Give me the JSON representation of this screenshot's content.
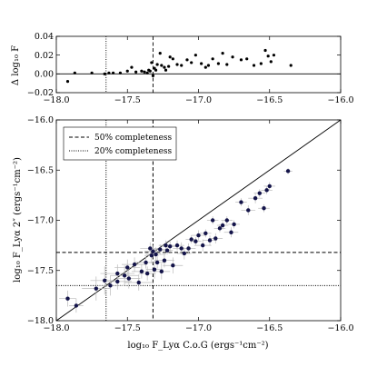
{
  "chart_data": [
    {
      "type": "scatter",
      "panel": "top",
      "ylabel": "Δ log₁₀ F",
      "xlim": [
        -18.0,
        -16.0
      ],
      "ylim": [
        -0.02,
        0.04
      ],
      "xticks": [
        "−18.0",
        "−17.5",
        "−17.0",
        "−16.5",
        "−16.0"
      ],
      "yticks": [
        "−0.02",
        "0.00",
        "0.02",
        "0.04"
      ],
      "xtick_values": [
        -18.0,
        -17.5,
        -17.0,
        -16.5,
        -16.0
      ],
      "ytick_values": [
        -0.02,
        0.0,
        0.02,
        0.04
      ],
      "hlines": [
        0.0
      ],
      "vlines_dashed": [
        -17.32
      ],
      "vlines_dotted": [
        -17.65
      ],
      "points": [
        [
          -17.92,
          -0.008
        ],
        [
          -17.87,
          0.001
        ],
        [
          -17.75,
          0.001
        ],
        [
          -17.66,
          0.0
        ],
        [
          -17.63,
          0.001
        ],
        [
          -17.6,
          0.001
        ],
        [
          -17.55,
          0.001
        ],
        [
          -17.5,
          0.003
        ],
        [
          -17.47,
          0.007
        ],
        [
          -17.44,
          0.002
        ],
        [
          -17.4,
          0.003
        ],
        [
          -17.38,
          0.002
        ],
        [
          -17.36,
          0.001
        ],
        [
          -17.35,
          0.004
        ],
        [
          -17.34,
          0.003
        ],
        [
          -17.33,
          0.012
        ],
        [
          -17.32,
          -0.002
        ],
        [
          -17.31,
          0.006
        ],
        [
          -17.3,
          0.004
        ],
        [
          -17.29,
          0.01
        ],
        [
          -17.27,
          0.022
        ],
        [
          -17.26,
          0.009
        ],
        [
          -17.24,
          0.007
        ],
        [
          -17.23,
          0.004
        ],
        [
          -17.21,
          0.008
        ],
        [
          -17.2,
          0.018
        ],
        [
          -17.18,
          0.016
        ],
        [
          -17.15,
          0.01
        ],
        [
          -17.12,
          0.009
        ],
        [
          -17.08,
          0.015
        ],
        [
          -17.05,
          0.012
        ],
        [
          -17.02,
          0.02
        ],
        [
          -16.98,
          0.011
        ],
        [
          -16.95,
          0.007
        ],
        [
          -16.93,
          0.009
        ],
        [
          -16.9,
          0.016
        ],
        [
          -16.86,
          0.011
        ],
        [
          -16.83,
          0.022
        ],
        [
          -16.8,
          0.01
        ],
        [
          -16.76,
          0.018
        ],
        [
          -16.7,
          0.015
        ],
        [
          -16.66,
          0.016
        ],
        [
          -16.61,
          0.009
        ],
        [
          -16.56,
          0.011
        ],
        [
          -16.53,
          0.025
        ],
        [
          -16.51,
          0.019
        ],
        [
          -16.49,
          0.013
        ],
        [
          -16.47,
          0.02
        ],
        [
          -16.35,
          0.009
        ]
      ]
    },
    {
      "type": "scatter",
      "panel": "bottom",
      "xlabel": "log₁₀ F_Lyα C.o.G (ergs⁻¹cm⁻²)",
      "ylabel": "log₁₀ F_Lyα 2″ (ergs⁻¹cm⁻²)",
      "xlim": [
        -18.0,
        -16.0
      ],
      "ylim": [
        -18.0,
        -16.0
      ],
      "xticks": [
        "−18.0",
        "−17.5",
        "−17.0",
        "−16.5",
        "−16.0"
      ],
      "yticks": [
        "−18.0",
        "−17.5",
        "−17.0",
        "−16.5",
        "−16.0"
      ],
      "xtick_values": [
        -18.0,
        -17.5,
        -17.0,
        -16.5,
        -16.0
      ],
      "ytick_values": [
        -18.0,
        -17.5,
        -17.0,
        -16.5,
        -16.0
      ],
      "legend": {
        "placement": "top-left",
        "entries": [
          {
            "label": "50% completeness",
            "style": "dashed"
          },
          {
            "label": "20% completeness",
            "style": "dotted"
          }
        ]
      },
      "one_to_one_line": true,
      "completeness_50": -17.32,
      "completeness_20": -17.65,
      "points": [
        [
          -17.92,
          -17.78,
          0.06,
          0.08
        ],
        [
          -17.86,
          -17.85,
          0.05,
          0.07
        ],
        [
          -17.72,
          -17.68,
          0.1,
          0.12
        ],
        [
          -17.66,
          -17.6,
          0.1,
          0.14
        ],
        [
          -17.62,
          -17.65,
          0.09,
          0.1
        ],
        [
          -17.57,
          -17.61,
          0.1,
          0.08
        ],
        [
          -17.57,
          -17.53,
          0.12,
          0.09
        ],
        [
          -17.52,
          -17.55,
          0.1,
          0.1
        ],
        [
          -17.5,
          -17.47,
          0.09,
          0.08
        ],
        [
          -17.49,
          -17.58,
          0.08,
          0.1
        ],
        [
          -17.45,
          -17.44,
          0.09,
          0.07
        ],
        [
          -17.42,
          -17.62,
          0.1,
          0.08
        ],
        [
          -17.4,
          -17.51,
          0.07,
          0.07
        ],
        [
          -17.37,
          -17.42,
          0.08,
          0.06
        ],
        [
          -17.36,
          -17.53,
          0.06,
          0.07
        ],
        [
          -17.34,
          -17.28,
          0.07,
          0.06
        ],
        [
          -17.33,
          -17.35,
          0.05,
          0.08
        ],
        [
          -17.32,
          -17.31,
          0.06,
          0.06
        ],
        [
          -17.31,
          -17.49,
          0.06,
          0.09
        ],
        [
          -17.3,
          -17.34,
          0.07,
          0.07
        ],
        [
          -17.29,
          -17.42,
          0.06,
          0.06
        ],
        [
          -17.27,
          -17.29,
          0.05,
          0.05
        ],
        [
          -17.26,
          -17.51,
          0.06,
          0.08
        ],
        [
          -17.24,
          -17.4,
          0.07,
          0.07
        ],
        [
          -17.23,
          -17.25,
          0.05,
          0.05
        ],
        [
          -17.22,
          -17.3,
          0.04,
          0.04
        ],
        [
          -17.2,
          -17.26,
          0.06,
          0.06
        ],
        [
          -17.18,
          -17.45,
          0.07,
          0.08
        ],
        [
          -17.15,
          -17.25,
          0.05,
          0.05
        ],
        [
          -17.12,
          -17.28,
          0.06,
          0.06
        ],
        [
          -17.1,
          -17.33,
          0.05,
          0.06
        ],
        [
          -17.07,
          -17.28,
          0.05,
          0.05
        ],
        [
          -17.05,
          -17.19,
          0.04,
          0.04
        ],
        [
          -17.02,
          -17.21,
          0.04,
          0.04
        ],
        [
          -17.0,
          -17.15,
          0.05,
          0.05
        ],
        [
          -16.97,
          -17.25,
          0.06,
          0.06
        ],
        [
          -16.95,
          -17.13,
          0.04,
          0.04
        ],
        [
          -16.92,
          -17.2,
          0.05,
          0.05
        ],
        [
          -16.9,
          -17.0,
          0.04,
          0.04
        ],
        [
          -16.88,
          -17.18,
          0.05,
          0.05
        ],
        [
          -16.85,
          -17.08,
          0.04,
          0.04
        ],
        [
          -16.83,
          -17.05,
          0.04,
          0.04
        ],
        [
          -16.8,
          -17.0,
          0.04,
          0.04
        ],
        [
          -16.77,
          -17.12,
          0.05,
          0.05
        ],
        [
          -16.75,
          -17.04,
          0.04,
          0.04
        ],
        [
          -16.7,
          -16.82,
          0.04,
          0.04
        ],
        [
          -16.65,
          -16.9,
          0.05,
          0.05
        ],
        [
          -16.6,
          -16.78,
          0.05,
          0.05
        ],
        [
          -16.57,
          -16.73,
          0.04,
          0.04
        ],
        [
          -16.54,
          -16.88,
          0.04,
          0.04
        ],
        [
          -16.52,
          -16.7,
          0.04,
          0.04
        ],
        [
          -16.5,
          -16.66,
          0.04,
          0.04
        ],
        [
          -16.37,
          -16.51,
          0.03,
          0.03
        ]
      ]
    }
  ]
}
